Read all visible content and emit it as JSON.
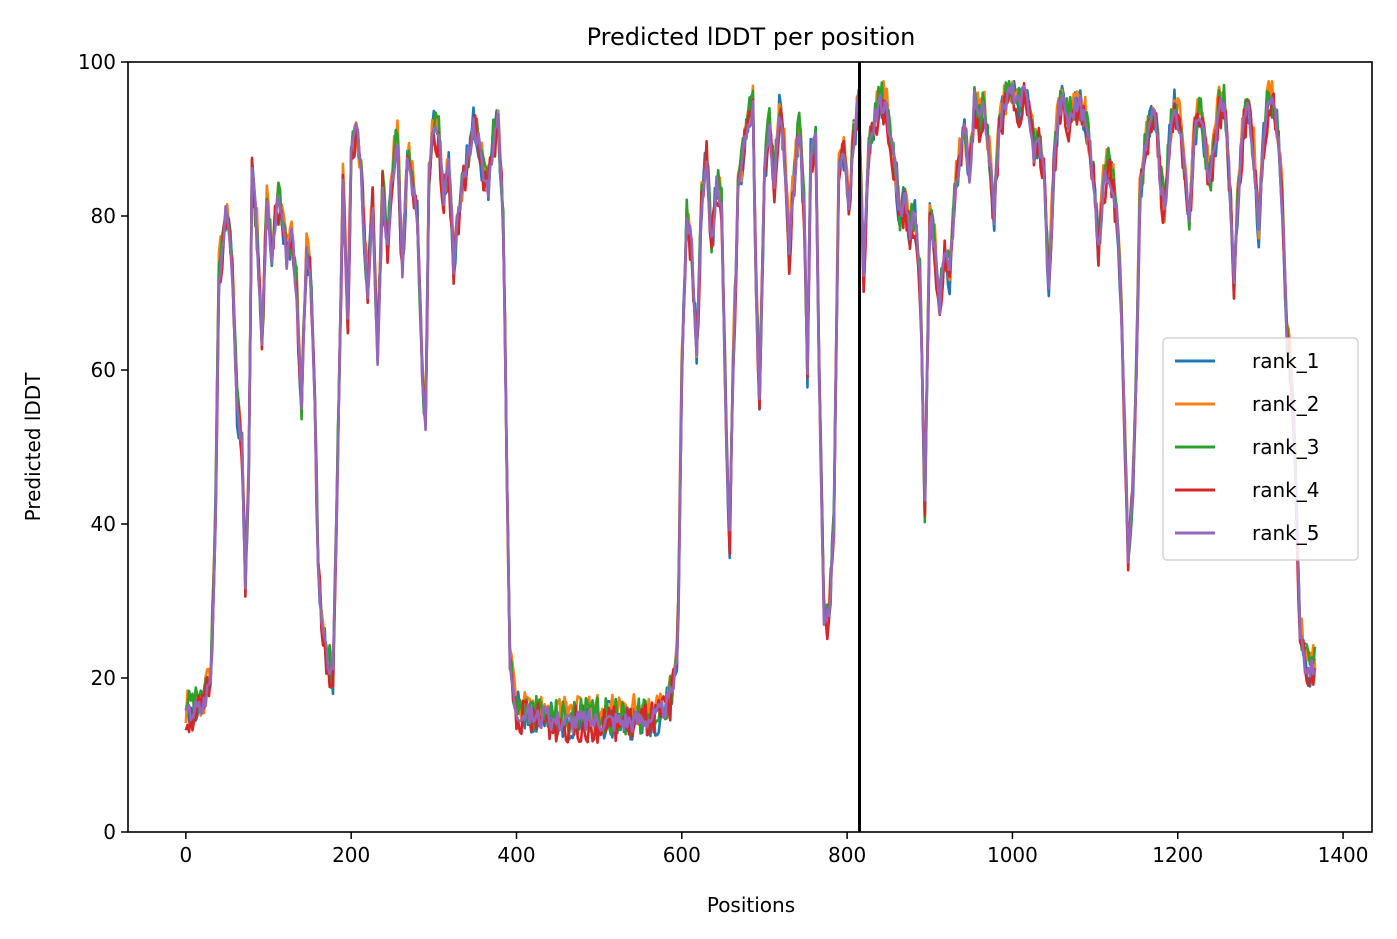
{
  "chart_data": {
    "type": "line",
    "title": "Predicted lDDT per position",
    "xlabel": "Positions",
    "ylabel": "Predicted lDDT",
    "xlim": [
      -70,
      1435
    ],
    "ylim": [
      0,
      100
    ],
    "xticks": [
      0,
      200,
      400,
      600,
      800,
      1000,
      1200,
      1400
    ],
    "yticks": [
      0,
      20,
      40,
      60,
      80,
      100
    ],
    "grid": false,
    "legend_position": "center-right",
    "vline_x": 815,
    "vline_color": "#000000",
    "profile_points": [
      [
        0,
        15
      ],
      [
        10,
        16
      ],
      [
        20,
        16
      ],
      [
        30,
        20
      ],
      [
        35,
        35
      ],
      [
        40,
        72
      ],
      [
        48,
        80
      ],
      [
        55,
        76
      ],
      [
        62,
        55
      ],
      [
        68,
        50
      ],
      [
        72,
        33
      ],
      [
        76,
        45
      ],
      [
        80,
        86
      ],
      [
        86,
        78
      ],
      [
        92,
        62
      ],
      [
        98,
        82
      ],
      [
        104,
        75
      ],
      [
        110,
        82
      ],
      [
        116,
        80
      ],
      [
        122,
        74
      ],
      [
        128,
        78
      ],
      [
        134,
        70
      ],
      [
        140,
        55
      ],
      [
        146,
        75
      ],
      [
        150,
        74
      ],
      [
        155,
        60
      ],
      [
        160,
        35
      ],
      [
        166,
        25
      ],
      [
        172,
        22
      ],
      [
        178,
        20
      ],
      [
        184,
        50
      ],
      [
        190,
        84
      ],
      [
        196,
        66
      ],
      [
        200,
        88
      ],
      [
        206,
        92
      ],
      [
        212,
        85
      ],
      [
        220,
        70
      ],
      [
        226,
        82
      ],
      [
        232,
        62
      ],
      [
        238,
        84
      ],
      [
        244,
        76
      ],
      [
        250,
        86
      ],
      [
        256,
        90
      ],
      [
        262,
        72
      ],
      [
        268,
        88
      ],
      [
        274,
        84
      ],
      [
        280,
        80
      ],
      [
        286,
        60
      ],
      [
        290,
        52
      ],
      [
        294,
        85
      ],
      [
        300,
        92
      ],
      [
        306,
        90
      ],
      [
        312,
        82
      ],
      [
        318,
        87
      ],
      [
        324,
        74
      ],
      [
        330,
        80
      ],
      [
        336,
        85
      ],
      [
        342,
        88
      ],
      [
        348,
        92
      ],
      [
        354,
        90
      ],
      [
        360,
        85
      ],
      [
        366,
        84
      ],
      [
        372,
        90
      ],
      [
        378,
        92
      ],
      [
        384,
        80
      ],
      [
        388,
        50
      ],
      [
        392,
        22
      ],
      [
        396,
        18
      ],
      [
        400,
        16
      ],
      [
        420,
        15
      ],
      [
        450,
        14.5
      ],
      [
        480,
        14.5
      ],
      [
        510,
        14.5
      ],
      [
        540,
        14.5
      ],
      [
        570,
        15
      ],
      [
        585,
        17
      ],
      [
        595,
        22
      ],
      [
        600,
        60
      ],
      [
        606,
        80
      ],
      [
        612,
        76
      ],
      [
        618,
        62
      ],
      [
        624,
        82
      ],
      [
        630,
        88
      ],
      [
        636,
        76
      ],
      [
        642,
        84
      ],
      [
        648,
        82
      ],
      [
        654,
        50
      ],
      [
        658,
        38
      ],
      [
        662,
        60
      ],
      [
        668,
        82
      ],
      [
        674,
        88
      ],
      [
        680,
        92
      ],
      [
        686,
        94
      ],
      [
        690,
        70
      ],
      [
        694,
        57
      ],
      [
        700,
        85
      ],
      [
        706,
        92
      ],
      [
        712,
        84
      ],
      [
        718,
        94
      ],
      [
        724,
        88
      ],
      [
        730,
        75
      ],
      [
        736,
        85
      ],
      [
        742,
        92
      ],
      [
        748,
        80
      ],
      [
        752,
        60
      ],
      [
        756,
        88
      ],
      [
        762,
        90
      ],
      [
        766,
        60
      ],
      [
        772,
        28
      ],
      [
        778,
        28
      ],
      [
        784,
        40
      ],
      [
        790,
        86
      ],
      [
        796,
        88
      ],
      [
        802,
        80
      ],
      [
        808,
        90
      ],
      [
        814,
        95
      ],
      [
        820,
        72
      ],
      [
        826,
        88
      ],
      [
        832,
        92
      ],
      [
        838,
        94
      ],
      [
        846,
        95
      ],
      [
        852,
        90
      ],
      [
        858,
        86
      ],
      [
        864,
        80
      ],
      [
        870,
        82
      ],
      [
        876,
        78
      ],
      [
        882,
        80
      ],
      [
        888,
        72
      ],
      [
        894,
        42
      ],
      [
        900,
        80
      ],
      [
        906,
        76
      ],
      [
        912,
        68
      ],
      [
        918,
        76
      ],
      [
        924,
        72
      ],
      [
        930,
        82
      ],
      [
        936,
        88
      ],
      [
        942,
        92
      ],
      [
        948,
        85
      ],
      [
        954,
        95
      ],
      [
        960,
        92
      ],
      [
        966,
        94
      ],
      [
        972,
        88
      ],
      [
        978,
        80
      ],
      [
        984,
        92
      ],
      [
        990,
        94
      ],
      [
        996,
        96
      ],
      [
        1002,
        96
      ],
      [
        1008,
        94
      ],
      [
        1014,
        96
      ],
      [
        1020,
        94
      ],
      [
        1026,
        88
      ],
      [
        1032,
        90
      ],
      [
        1038,
        86
      ],
      [
        1044,
        70
      ],
      [
        1050,
        86
      ],
      [
        1056,
        94
      ],
      [
        1062,
        95
      ],
      [
        1068,
        92
      ],
      [
        1074,
        94
      ],
      [
        1080,
        95
      ],
      [
        1086,
        93
      ],
      [
        1092,
        90
      ],
      [
        1098,
        85
      ],
      [
        1104,
        75
      ],
      [
        1110,
        84
      ],
      [
        1116,
        86
      ],
      [
        1122,
        84
      ],
      [
        1128,
        78
      ],
      [
        1134,
        60
      ],
      [
        1140,
        35
      ],
      [
        1146,
        45
      ],
      [
        1150,
        60
      ],
      [
        1154,
        82
      ],
      [
        1160,
        88
      ],
      [
        1166,
        92
      ],
      [
        1172,
        94
      ],
      [
        1178,
        86
      ],
      [
        1184,
        80
      ],
      [
        1190,
        90
      ],
      [
        1196,
        94
      ],
      [
        1202,
        92
      ],
      [
        1208,
        86
      ],
      [
        1214,
        80
      ],
      [
        1220,
        90
      ],
      [
        1226,
        94
      ],
      [
        1232,
        90
      ],
      [
        1238,
        84
      ],
      [
        1244,
        88
      ],
      [
        1250,
        94
      ],
      [
        1256,
        95
      ],
      [
        1262,
        86
      ],
      [
        1268,
        72
      ],
      [
        1274,
        84
      ],
      [
        1280,
        92
      ],
      [
        1286,
        94
      ],
      [
        1292,
        88
      ],
      [
        1298,
        78
      ],
      [
        1304,
        90
      ],
      [
        1310,
        95
      ],
      [
        1316,
        94
      ],
      [
        1322,
        90
      ],
      [
        1328,
        78
      ],
      [
        1332,
        64
      ],
      [
        1336,
        60
      ],
      [
        1340,
        55
      ],
      [
        1344,
        40
      ],
      [
        1348,
        26
      ],
      [
        1354,
        22
      ],
      [
        1360,
        21
      ],
      [
        1366,
        22
      ]
    ],
    "series": [
      {
        "name": "rank_1",
        "color": "#1f77b4",
        "offset": 0,
        "amplitude": 2.5,
        "seed": 11
      },
      {
        "name": "rank_2",
        "color": "#ff7f0e",
        "offset": 1,
        "amplitude": 2.5,
        "seed": 23
      },
      {
        "name": "rank_3",
        "color": "#2ca02c",
        "offset": 0.5,
        "amplitude": 2.5,
        "seed": 37
      },
      {
        "name": "rank_4",
        "color": "#d62728",
        "offset": -0.5,
        "amplitude": 2.5,
        "seed": 51
      },
      {
        "name": "rank_5",
        "color": "#9467bd",
        "offset": 0,
        "amplitude": 1.5,
        "seed": 67
      }
    ]
  }
}
